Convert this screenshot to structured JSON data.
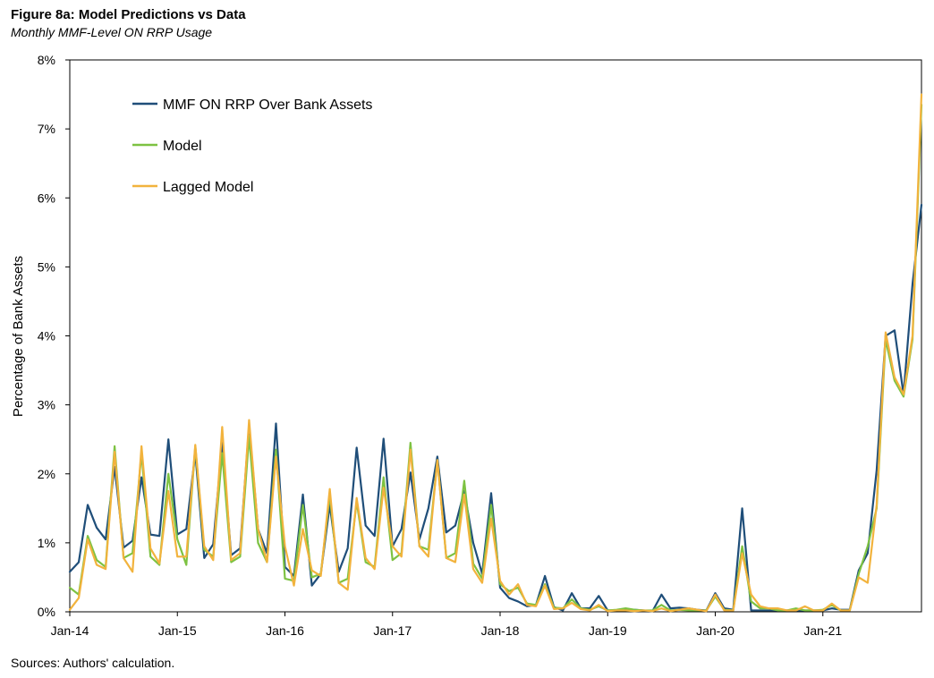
{
  "figure": {
    "title": "Figure 8a: Model Predictions vs Data",
    "subtitle": "Monthly MMF-Level ON RRP Usage",
    "source": "Sources: Authors' calculation."
  },
  "colors": {
    "data": "#1f4e79",
    "model": "#7dc242",
    "lagged": "#f2b33d",
    "frame": "#000000"
  },
  "chart_data": {
    "type": "line",
    "title": "Model Predictions vs Data",
    "xlabel": "",
    "ylabel": "Percentage of Bank Assets",
    "x_start": "2014-01",
    "x_ticks": [
      "Jan-14",
      "Jan-15",
      "Jan-16",
      "Jan-17",
      "Jan-18",
      "Jan-19",
      "Jan-20",
      "Jan-21"
    ],
    "y_ticks": [
      "0%",
      "1%",
      "2%",
      "3%",
      "4%",
      "5%",
      "6%",
      "7%",
      "8%"
    ],
    "ylim": [
      0,
      8
    ],
    "grid": false,
    "legend_position": "top-left",
    "series": [
      {
        "name": "MMF ON RRP Over Bank Assets",
        "color": "#1f4e79",
        "values": [
          0.58,
          0.72,
          1.55,
          1.22,
          1.05,
          2.1,
          0.93,
          1.03,
          1.95,
          1.12,
          1.1,
          2.5,
          1.12,
          1.2,
          2.3,
          0.78,
          0.98,
          2.45,
          0.82,
          0.92,
          2.7,
          1.2,
          0.85,
          2.73,
          0.65,
          0.52,
          1.7,
          0.38,
          0.55,
          1.55,
          0.58,
          0.92,
          2.38,
          1.25,
          1.1,
          2.51,
          0.95,
          1.2,
          2.02,
          1.05,
          1.5,
          2.25,
          1.15,
          1.25,
          1.75,
          1.0,
          0.55,
          1.72,
          0.35,
          0.2,
          0.15,
          0.08,
          0.1,
          0.52,
          0.07,
          0.02,
          0.27,
          0.05,
          0.05,
          0.23,
          0.02,
          0.02,
          0.03,
          0.03,
          0.02,
          0.01,
          0.25,
          0.05,
          0.06,
          0.05,
          0.03,
          0.02,
          0.27,
          0.05,
          0.03,
          1.5,
          0.02,
          0.02,
          0.02,
          0.02,
          0.02,
          0.02,
          0.02,
          0.02,
          0.02,
          0.05,
          0.03,
          0.03,
          0.6,
          0.85,
          2.05,
          4.0,
          4.08,
          3.15,
          4.75,
          5.9
        ]
      },
      {
        "name": "Model",
        "color": "#7dc242",
        "values": [
          0.35,
          0.25,
          1.1,
          0.75,
          0.65,
          2.4,
          0.78,
          0.85,
          2.3,
          0.8,
          0.68,
          2.0,
          1.05,
          0.68,
          2.4,
          0.9,
          0.8,
          2.3,
          0.72,
          0.8,
          2.55,
          1.0,
          0.72,
          2.35,
          0.48,
          0.45,
          1.55,
          0.5,
          0.55,
          1.7,
          0.42,
          0.48,
          1.6,
          0.72,
          0.65,
          1.95,
          0.75,
          0.85,
          2.45,
          0.95,
          0.9,
          2.2,
          0.78,
          0.85,
          1.9,
          0.7,
          0.48,
          1.55,
          0.4,
          0.3,
          0.35,
          0.12,
          0.1,
          0.4,
          0.06,
          0.05,
          0.18,
          0.05,
          0.03,
          0.08,
          0.02,
          0.03,
          0.05,
          0.03,
          0.02,
          0.02,
          0.1,
          0.02,
          0.03,
          0.02,
          0.02,
          0.02,
          0.22,
          0.03,
          0.02,
          0.95,
          0.15,
          0.05,
          0.05,
          0.02,
          0.02,
          0.05,
          0.02,
          0.02,
          0.03,
          0.1,
          0.02,
          0.02,
          0.55,
          0.95,
          1.5,
          3.95,
          3.35,
          3.12,
          3.95,
          7.35
        ]
      },
      {
        "name": "Lagged Model",
        "color": "#f2b33d",
        "values": [
          0.03,
          0.2,
          1.05,
          0.68,
          0.62,
          2.32,
          0.78,
          0.58,
          2.4,
          0.92,
          0.7,
          1.75,
          0.8,
          0.8,
          2.42,
          0.95,
          0.75,
          2.68,
          0.75,
          0.85,
          2.78,
          1.2,
          0.72,
          2.25,
          0.95,
          0.38,
          1.2,
          0.6,
          0.52,
          1.78,
          0.42,
          0.32,
          1.65,
          0.78,
          0.62,
          1.8,
          0.95,
          0.8,
          2.35,
          0.95,
          0.8,
          2.2,
          0.78,
          0.72,
          1.7,
          0.62,
          0.42,
          1.35,
          0.45,
          0.25,
          0.4,
          0.1,
          0.08,
          0.38,
          0.04,
          0.05,
          0.13,
          0.04,
          0.02,
          0.1,
          0.01,
          0.02,
          0.02,
          0.01,
          0.02,
          0.01,
          0.05,
          0.01,
          0.03,
          0.05,
          0.03,
          0.01,
          0.25,
          0.02,
          0.02,
          0.85,
          0.25,
          0.08,
          0.05,
          0.05,
          0.02,
          0.02,
          0.08,
          0.02,
          0.02,
          0.12,
          0.02,
          0.02,
          0.5,
          0.42,
          1.55,
          4.05,
          3.4,
          3.15,
          4.0,
          7.5
        ]
      }
    ]
  }
}
